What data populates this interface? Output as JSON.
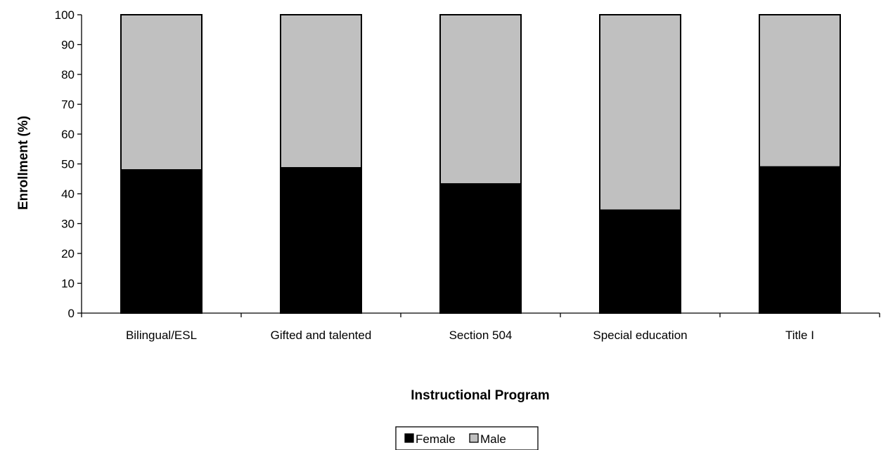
{
  "chart_data": {
    "type": "bar",
    "stacked": true,
    "title": "",
    "xlabel": "Instructional Program",
    "ylabel": "Enrollment (%)",
    "ylim": [
      0,
      100
    ],
    "y_ticks": [
      0,
      10,
      20,
      30,
      40,
      50,
      60,
      70,
      80,
      90,
      100
    ],
    "categories": [
      "Bilingual/ESL",
      "Gifted and talented",
      "Section 504",
      "Special education",
      "Title I"
    ],
    "series": [
      {
        "name": "Female",
        "color": "#000000",
        "values": [
          48,
          48.7,
          43.3,
          34.5,
          49
        ]
      },
      {
        "name": "Male",
        "color": "#c0c0c0",
        "values": [
          52,
          51.3,
          56.7,
          65.5,
          51
        ]
      }
    ],
    "legend_position": "bottom-center",
    "grid": false
  }
}
